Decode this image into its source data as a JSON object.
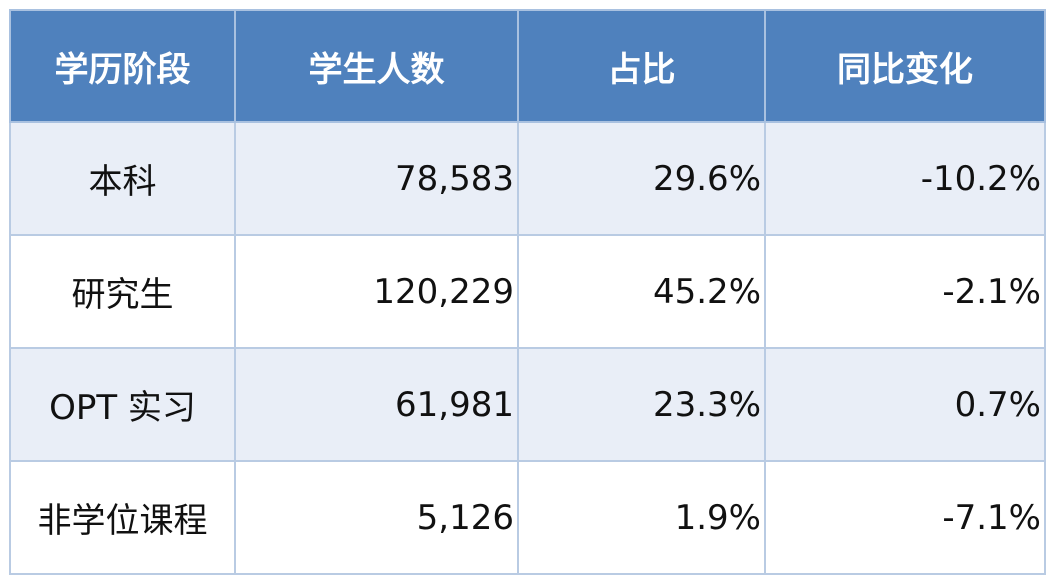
{
  "table": {
    "headers": [
      "学历阶段",
      "学生人数",
      "占比",
      "同比变化"
    ],
    "rows": [
      {
        "stage": "本科",
        "students": "78,583",
        "share": "29.6%",
        "yoy": "-10.2%"
      },
      {
        "stage": "研究生",
        "students": "120,229",
        "share": "45.2%",
        "yoy": "-2.1%"
      },
      {
        "stage": "OPT 实习",
        "students": "61,981",
        "share": "23.3%",
        "yoy": "0.7%"
      },
      {
        "stage": "非学位课程",
        "students": "5,126",
        "share": "1.9%",
        "yoy": "-7.1%"
      }
    ],
    "colors": {
      "header_bg": "#4f81bd",
      "header_text": "#ffffff",
      "row_alt_bg": "#e9eef7",
      "border": "#b9cbe3"
    }
  }
}
